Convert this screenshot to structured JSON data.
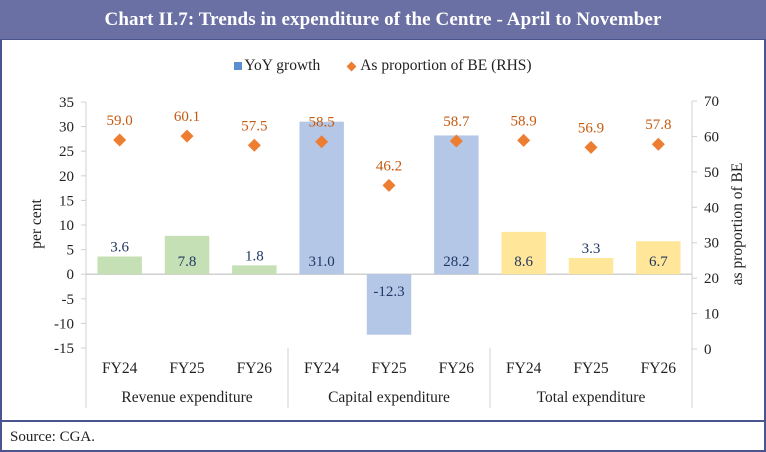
{
  "header": {
    "title": "Chart II.7: Trends in expenditure of the Centre - April to November"
  },
  "footer": {
    "source": "Source: CGA."
  },
  "legend": [
    {
      "label": "YoY growth",
      "marker": "square",
      "color": "#5b8fd0"
    },
    {
      "label": "As proportion of BE (RHS)",
      "marker": "diamond",
      "color": "#ed7d31"
    }
  ],
  "chart_data": {
    "type": "bar",
    "title": "Chart II.7: Trends in expenditure of the Centre - April to November",
    "ylabel": "per cent",
    "ylabel_right": "as proportion of BE",
    "ylim": [
      -15,
      35
    ],
    "yticks": [
      35,
      30,
      25,
      20,
      15,
      10,
      5,
      0,
      -5,
      -10,
      -15
    ],
    "ylim_right": [
      0,
      70
    ],
    "yticks_right": [
      70,
      60,
      50,
      40,
      30,
      20,
      10,
      0
    ],
    "grid": false,
    "legend_position": "top-center",
    "groups": [
      {
        "name": "Revenue expenditure",
        "color": "#c5e0b4"
      },
      {
        "name": "Capital expenditure",
        "color": "#b4c7e7"
      },
      {
        "name": "Total expenditure",
        "color": "#ffe699"
      }
    ],
    "categories": [
      "FY24",
      "FY25",
      "FY26",
      "FY24",
      "FY25",
      "FY26",
      "FY24",
      "FY25",
      "FY26"
    ],
    "category_groups": [
      0,
      0,
      0,
      1,
      1,
      1,
      2,
      2,
      2
    ],
    "series": [
      {
        "name": "YoY growth",
        "type": "bar",
        "axis": "left",
        "values": [
          3.6,
          7.8,
          1.8,
          31.0,
          -12.3,
          28.2,
          8.6,
          3.3,
          6.7
        ],
        "labels": [
          "3.6",
          "7.8",
          "1.8",
          "31.0",
          "-12.3",
          "28.2",
          "8.6",
          "3.3",
          "6.7"
        ],
        "label_color": "#1f3864"
      },
      {
        "name": "As proportion of BE (RHS)",
        "type": "scatter",
        "marker": "diamond",
        "axis": "right",
        "color": "#ed7d31",
        "values": [
          59.0,
          60.1,
          57.5,
          58.5,
          46.2,
          58.7,
          58.9,
          56.9,
          57.8
        ],
        "labels": [
          "59.0",
          "60.1",
          "57.5",
          "58.5",
          "46.2",
          "58.7",
          "58.9",
          "56.9",
          "57.8"
        ],
        "label_color": "#c55a11"
      }
    ]
  }
}
